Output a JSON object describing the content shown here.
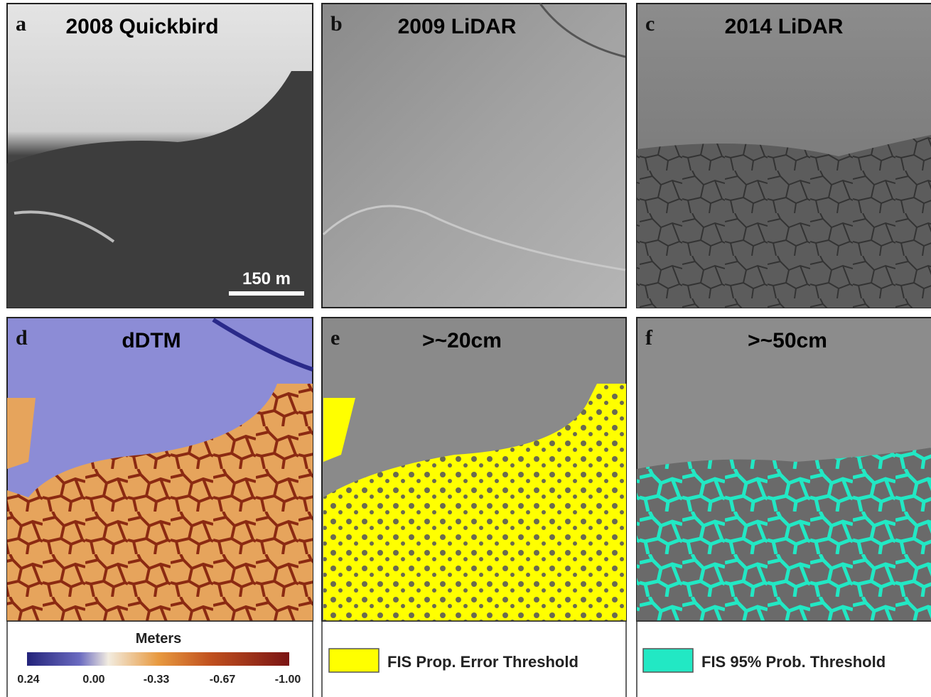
{
  "panels": [
    {
      "letter": "a",
      "title": "2008 Quickbird"
    },
    {
      "letter": "b",
      "title": "2009 LiDAR"
    },
    {
      "letter": "c",
      "title": "2014 LiDAR"
    },
    {
      "letter": "d",
      "title": "dDTM"
    },
    {
      "letter": "e",
      "title": ">~20cm"
    },
    {
      "letter": "f",
      "title": ">~50cm"
    }
  ],
  "scale_bar": "150 m",
  "colorbar": {
    "title": "Meters",
    "ticks": [
      "0.24",
      "0.00",
      "-0.33",
      "-0.67",
      "-1.00"
    ]
  },
  "legends": [
    {
      "label": "FIS Prop. Error Threshold",
      "color": "#ffff00"
    },
    {
      "label": "FIS 95% Prob. Threshold",
      "color": "#22e8c4"
    }
  ]
}
